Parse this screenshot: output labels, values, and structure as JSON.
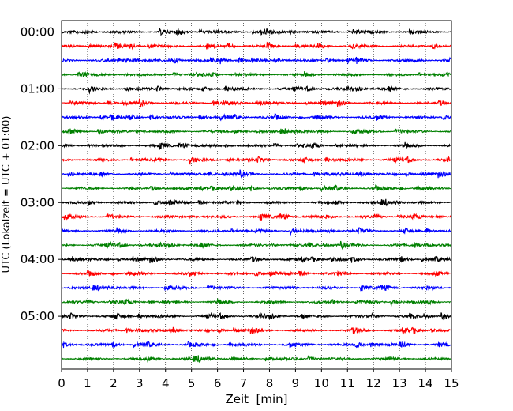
{
  "chart_data": {
    "type": "line",
    "title": "",
    "xlabel": "Zeit  [min]",
    "ylabel": "UTC (Lokalzeit = UTC + 01:00)",
    "xlim": [
      0,
      15
    ],
    "x_ticks": [
      "0",
      "1",
      "2",
      "3",
      "4",
      "5",
      "6",
      "7",
      "8",
      "9",
      "10",
      "11",
      "12",
      "13",
      "14",
      "15"
    ],
    "y_ticks": [
      "00:00",
      "01:00",
      "02:00",
      "03:00",
      "04:00",
      "05:00"
    ],
    "grid": "vertical dotted lines at each minute",
    "trace_interval_minutes": 15,
    "trace_colors": [
      "#000000",
      "#ff0000",
      "#0000ff",
      "#008000"
    ],
    "series": [
      {
        "start": "00:00",
        "color": "#000000"
      },
      {
        "start": "00:15",
        "color": "#ff0000"
      },
      {
        "start": "00:30",
        "color": "#0000ff"
      },
      {
        "start": "00:45",
        "color": "#008000"
      },
      {
        "start": "01:00",
        "color": "#000000"
      },
      {
        "start": "01:15",
        "color": "#ff0000"
      },
      {
        "start": "01:30",
        "color": "#0000ff"
      },
      {
        "start": "01:45",
        "color": "#008000"
      },
      {
        "start": "02:00",
        "color": "#000000"
      },
      {
        "start": "02:15",
        "color": "#ff0000"
      },
      {
        "start": "02:30",
        "color": "#0000ff"
      },
      {
        "start": "02:45",
        "color": "#008000"
      },
      {
        "start": "03:00",
        "color": "#000000"
      },
      {
        "start": "03:15",
        "color": "#ff0000"
      },
      {
        "start": "03:30",
        "color": "#0000ff"
      },
      {
        "start": "03:45",
        "color": "#008000"
      },
      {
        "start": "04:00",
        "color": "#000000"
      },
      {
        "start": "04:15",
        "color": "#ff0000"
      },
      {
        "start": "04:30",
        "color": "#0000ff"
      },
      {
        "start": "04:45",
        "color": "#008000"
      },
      {
        "start": "05:00",
        "color": "#000000"
      },
      {
        "start": "05:15",
        "color": "#ff0000"
      },
      {
        "start": "05:30",
        "color": "#0000ff"
      },
      {
        "start": "05:45",
        "color": "#008000"
      }
    ]
  }
}
